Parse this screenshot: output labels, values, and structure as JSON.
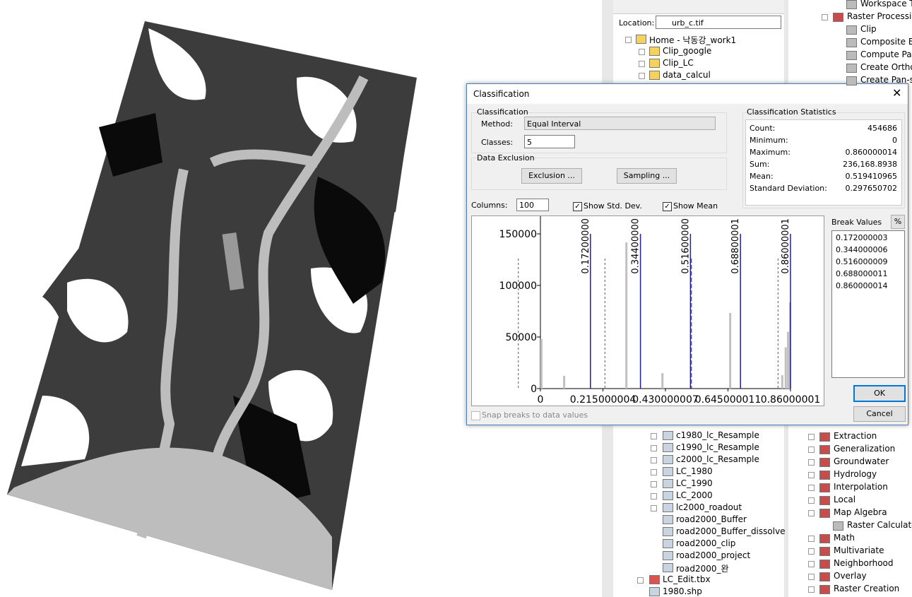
{
  "catalog": {
    "location_label": "Location:",
    "location_value": "urb_c.tif",
    "items_top": [
      "Home - 낙동강_work1",
      "Clip_google",
      "Clip_LC",
      "data_calcul"
    ],
    "items_bottom": [
      "c1980_lc_Resample",
      "c1990_lc_Resample",
      "c2000_lc_Resample",
      "LC_1980",
      "LC_1990",
      "LC_2000",
      "lc2000_roadout",
      "road2000_Buffer",
      "road2000_Buffer_dissolve",
      "road2000_clip",
      "road2000_project",
      "road2000_완",
      "LC_Edit.tbx",
      "1980.shp"
    ]
  },
  "toolbox": {
    "items_top": [
      "Workspace To",
      "Raster Processing",
      "Clip",
      "Composite Ba",
      "Compute Pan",
      "Create Ortho",
      "Create Pan-sh"
    ],
    "items_bottom": [
      "Extraction",
      "Generalization",
      "Groundwater",
      "Hydrology",
      "Interpolation",
      "Local",
      "Map Algebra",
      "Raster Calculator",
      "Math",
      "Multivariate",
      "Neighborhood",
      "Overlay",
      "Raster Creation"
    ]
  },
  "dialog": {
    "title": "Classification",
    "group": "Classification",
    "method_label": "Method:",
    "method": "Equal Interval",
    "classes_label": "Classes:",
    "classes": "5",
    "exclusion_group": "Data Exclusion",
    "exclusion_button": "Exclusion ...",
    "sampling_button": "Sampling ...",
    "statistics_title": "Classification Statistics",
    "statistics": [
      {
        "label": "Count:",
        "value": 454686
      },
      {
        "label": "Minimum:",
        "value": 0
      },
      {
        "label": "Maximum:",
        "value": 0.860000014
      },
      {
        "label": "Sum:",
        "value": {
          "value": 236168.8938,
          "label": "236,168.8938"
        }
      },
      {
        "label": "Mean:",
        "value": 0.519410965
      },
      {
        "label": "Standard Deviation:",
        "value": 0.297650702
      }
    ],
    "columns_label": "Columns:",
    "columns": "100",
    "checks": [
      {
        "label": "Show Std. Dev.",
        "checked": true
      },
      {
        "label": "Show Mean",
        "checked": true
      },
      {
        "label": "Snap breaks to data values",
        "checked": false
      }
    ],
    "break_values_title": "Break Values",
    "percent_button": "%",
    "ok": "OK",
    "cancel": "Cancel",
    "histogram": {
      "type": "histogram",
      "xlim": [
        0,
        0.86
      ],
      "ylim": [
        0,
        150000
      ],
      "xticks": [
        0,
        0.215000004,
        0.430000007,
        0.645000011,
        0.86000001
      ],
      "yticks": [
        0,
        50000,
        100000,
        150000
      ],
      "x": [
        0,
        0.078,
        0.292,
        0.416,
        0.649,
        0.828,
        0.84,
        0.848,
        0.855
      ],
      "values": [
        48000,
        12300,
        141800,
        15000,
        73300,
        13000,
        40000,
        55000,
        83500
      ],
      "color": "#c0c0c0",
      "breaks": [
        {
          "value": 0.172000003,
          "label": "0.17200000"
        },
        {
          "value": 0.344000006,
          "label": "0.34400000"
        },
        {
          "value": 0.516000009,
          "label": "0.51600000"
        },
        {
          "value": 0.688000011,
          "label": "0.68800001"
        },
        {
          "value": 0.860000014,
          "label": "0.86000001"
        }
      ],
      "break_color": "#1f1fa0"
    }
  }
}
